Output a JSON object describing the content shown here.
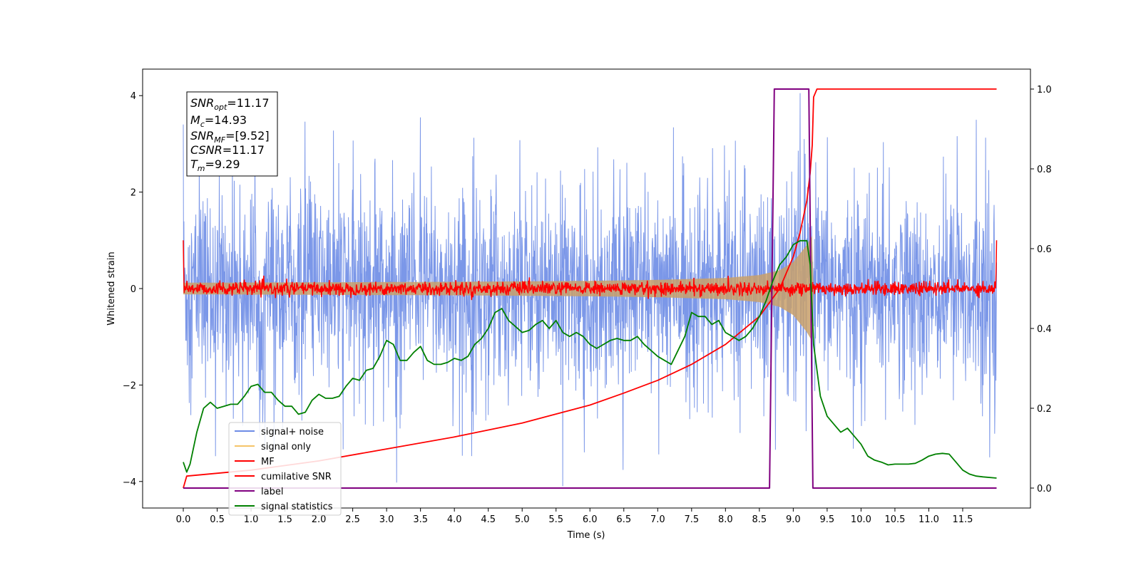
{
  "chart_data": {
    "type": "line",
    "title": "",
    "xlabel": "Time (s)",
    "ylabel": "Whitened strain",
    "xlim": [
      -0.6,
      12.5
    ],
    "ylim": [
      -4.55,
      4.55
    ],
    "y2lim": [
      -0.05,
      1.05
    ],
    "x_ticks": [
      "0.0",
      "0.5",
      "1.0",
      "1.5",
      "2.0",
      "2.5",
      "3.0",
      "3.5",
      "4.0",
      "4.5",
      "5.0",
      "5.5",
      "6.0",
      "6.5",
      "7.0",
      "7.5",
      "8.0",
      "8.5",
      "9.0",
      "9.5",
      "10.0",
      "10.5",
      "11.0",
      "11.5"
    ],
    "y_ticks": [
      "4",
      "2",
      "0",
      "−2",
      "−4"
    ],
    "y2_ticks": [
      "1.0",
      "0.8",
      "0.6",
      "0.4",
      "0.2",
      "0.0"
    ],
    "annotation": {
      "snr_opt": {
        "base": "SNR",
        "sub": "opt",
        "value": "=11.17"
      },
      "mc": {
        "base": "M",
        "sub": "c",
        "value": "=14.93"
      },
      "snr_mf": {
        "base": "SNR",
        "sub": "MF",
        "value": "=[9.52]"
      },
      "csnr": {
        "base": "CSNR",
        "sub": "",
        "value": "=11.17"
      },
      "tm": {
        "base": "T",
        "sub": "m",
        "value": "=9.29"
      }
    },
    "colors": {
      "noise": "#6d8ce6",
      "signal": "#f5b041",
      "mf": "#ff0000",
      "csnr": "#ff0000",
      "label": "#800080",
      "stats": "#008000"
    },
    "series": [
      {
        "name": "signal+ noise",
        "style": "dense noise, amplitude about ±1.5 with spikes up to about ±4",
        "x_range": [
          0,
          12
        ],
        "envelope_y": [
          -1.5,
          1.5
        ],
        "extreme_spikes": [
          [
            0.0,
            3.4
          ],
          [
            3.5,
            3.55
          ],
          [
            5.6,
            -4.1
          ],
          [
            9.1,
            4.05
          ],
          [
            11.7,
            3.5
          ],
          [
            11.9,
            -3.5
          ]
        ]
      },
      {
        "name": "signal only",
        "style": "chirp envelope",
        "x": [
          0,
          2,
          4,
          6,
          7,
          8,
          8.5,
          8.8,
          9.0,
          9.2,
          9.28,
          9.3
        ],
        "envelope": [
          0.12,
          0.13,
          0.14,
          0.16,
          0.18,
          0.22,
          0.28,
          0.38,
          0.55,
          0.9,
          1.1,
          0.0
        ]
      },
      {
        "name": "MF",
        "style": "noisy trace near zero, amplitude about ±0.15",
        "x_range": [
          0,
          12
        ],
        "spikes": [
          [
            0.0,
            1.0
          ],
          [
            12.0,
            1.0
          ]
        ]
      },
      {
        "name": "cumilative SNR",
        "axis": "right",
        "x": [
          0,
          0.05,
          1,
          2,
          3,
          4,
          5,
          6,
          6.5,
          7,
          7.5,
          8,
          8.5,
          8.8,
          9.0,
          9.1,
          9.2,
          9.25,
          9.28,
          9.3,
          9.35,
          12.0
        ],
        "y": [
          0.0,
          0.03,
          0.045,
          0.068,
          0.098,
          0.128,
          0.163,
          0.208,
          0.238,
          0.27,
          0.31,
          0.36,
          0.43,
          0.5,
          0.58,
          0.64,
          0.72,
          0.79,
          0.86,
          0.98,
          1.0,
          1.0
        ]
      },
      {
        "name": "label",
        "axis": "right",
        "x": [
          0,
          8.65,
          8.72,
          9.23,
          9.29,
          12.0
        ],
        "y": [
          0,
          0,
          1,
          1,
          0,
          0
        ]
      },
      {
        "name": "signal statistics",
        "axis": "right",
        "x": [
          0,
          0.05,
          0.1,
          0.2,
          0.3,
          0.4,
          0.5,
          0.6,
          0.7,
          0.8,
          0.9,
          1.0,
          1.1,
          1.2,
          1.3,
          1.4,
          1.5,
          1.6,
          1.7,
          1.8,
          1.9,
          2.0,
          2.1,
          2.2,
          2.3,
          2.4,
          2.5,
          2.6,
          2.7,
          2.8,
          2.9,
          3.0,
          3.1,
          3.2,
          3.3,
          3.4,
          3.5,
          3.6,
          3.7,
          3.8,
          3.9,
          4.0,
          4.1,
          4.2,
          4.3,
          4.4,
          4.5,
          4.6,
          4.7,
          4.8,
          4.9,
          5.0,
          5.1,
          5.2,
          5.3,
          5.4,
          5.5,
          5.6,
          5.7,
          5.8,
          5.9,
          6.0,
          6.1,
          6.2,
          6.3,
          6.4,
          6.5,
          6.6,
          6.7,
          6.8,
          6.9,
          7.0,
          7.1,
          7.2,
          7.3,
          7.4,
          7.5,
          7.6,
          7.7,
          7.8,
          7.9,
          8.0,
          8.1,
          8.2,
          8.3,
          8.4,
          8.5,
          8.6,
          8.7,
          8.8,
          8.9,
          9.0,
          9.1,
          9.2,
          9.25,
          9.3,
          9.4,
          9.5,
          9.6,
          9.7,
          9.8,
          9.9,
          10.0,
          10.1,
          10.2,
          10.3,
          10.4,
          10.5,
          10.6,
          10.7,
          10.8,
          10.9,
          11.0,
          11.1,
          11.2,
          11.3,
          11.4,
          11.5,
          11.6,
          11.7,
          11.8,
          12.0
        ],
        "y": [
          0.065,
          0.04,
          0.06,
          0.14,
          0.2,
          0.215,
          0.2,
          0.205,
          0.21,
          0.21,
          0.23,
          0.255,
          0.26,
          0.24,
          0.24,
          0.22,
          0.205,
          0.205,
          0.185,
          0.19,
          0.22,
          0.235,
          0.225,
          0.225,
          0.23,
          0.255,
          0.275,
          0.27,
          0.295,
          0.3,
          0.33,
          0.37,
          0.36,
          0.32,
          0.32,
          0.34,
          0.355,
          0.32,
          0.31,
          0.31,
          0.315,
          0.325,
          0.32,
          0.33,
          0.36,
          0.375,
          0.4,
          0.44,
          0.45,
          0.42,
          0.405,
          0.39,
          0.395,
          0.41,
          0.42,
          0.4,
          0.42,
          0.39,
          0.38,
          0.39,
          0.38,
          0.36,
          0.35,
          0.36,
          0.37,
          0.375,
          0.37,
          0.37,
          0.38,
          0.36,
          0.345,
          0.33,
          0.32,
          0.31,
          0.345,
          0.38,
          0.44,
          0.43,
          0.43,
          0.41,
          0.42,
          0.39,
          0.38,
          0.37,
          0.38,
          0.4,
          0.43,
          0.47,
          0.52,
          0.56,
          0.58,
          0.61,
          0.62,
          0.62,
          0.56,
          0.36,
          0.23,
          0.18,
          0.16,
          0.14,
          0.15,
          0.13,
          0.11,
          0.08,
          0.07,
          0.065,
          0.058,
          0.06,
          0.06,
          0.06,
          0.062,
          0.07,
          0.08,
          0.085,
          0.087,
          0.085,
          0.065,
          0.045,
          0.035,
          0.03,
          0.028,
          0.025
        ]
      }
    ],
    "legend": {
      "placement": "lower-left",
      "entries": [
        {
          "label": "signal+ noise",
          "color": "#6d8ce6"
        },
        {
          "label": "signal only",
          "color": "#f5c469"
        },
        {
          "label": "MF",
          "color": "#ff0000"
        },
        {
          "label": "cumilative SNR",
          "color": "#ff0000"
        },
        {
          "label": "label",
          "color": "#800080"
        },
        {
          "label": "signal statistics",
          "color": "#008000"
        }
      ]
    }
  }
}
